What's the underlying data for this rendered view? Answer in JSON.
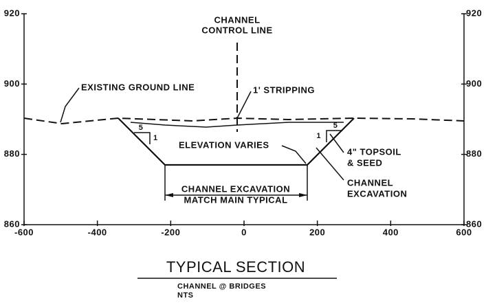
{
  "section": {
    "xticks": [
      -600,
      -400,
      -200,
      0,
      200,
      400,
      600
    ],
    "yticks": [
      860,
      880,
      900,
      920
    ],
    "xlim": [
      -600,
      600
    ],
    "ylim": [
      860,
      920
    ],
    "labels": {
      "control_line": [
        "CHANNEL",
        "CONTROL LINE"
      ],
      "existing_ground": "EXISTING GROUND LINE",
      "stripping": "1' STRIPPING",
      "elevation": "ELEVATION VARIES",
      "topsoil": [
        "4\" TOPSOIL",
        "& SEED"
      ],
      "excavation_right": [
        "CHANNEL",
        "EXCAVATION"
      ],
      "excavation_bottom": [
        "CHANNEL EXCAVATION",
        "MATCH MAIN TYPICAL"
      ],
      "slope_left": [
        "5",
        "1"
      ],
      "slope_right": [
        "5",
        "1"
      ]
    },
    "title": "TYPICAL SECTION",
    "subtitle": [
      "CHANNEL @ BRIDGES",
      "NTS"
    ]
  }
}
